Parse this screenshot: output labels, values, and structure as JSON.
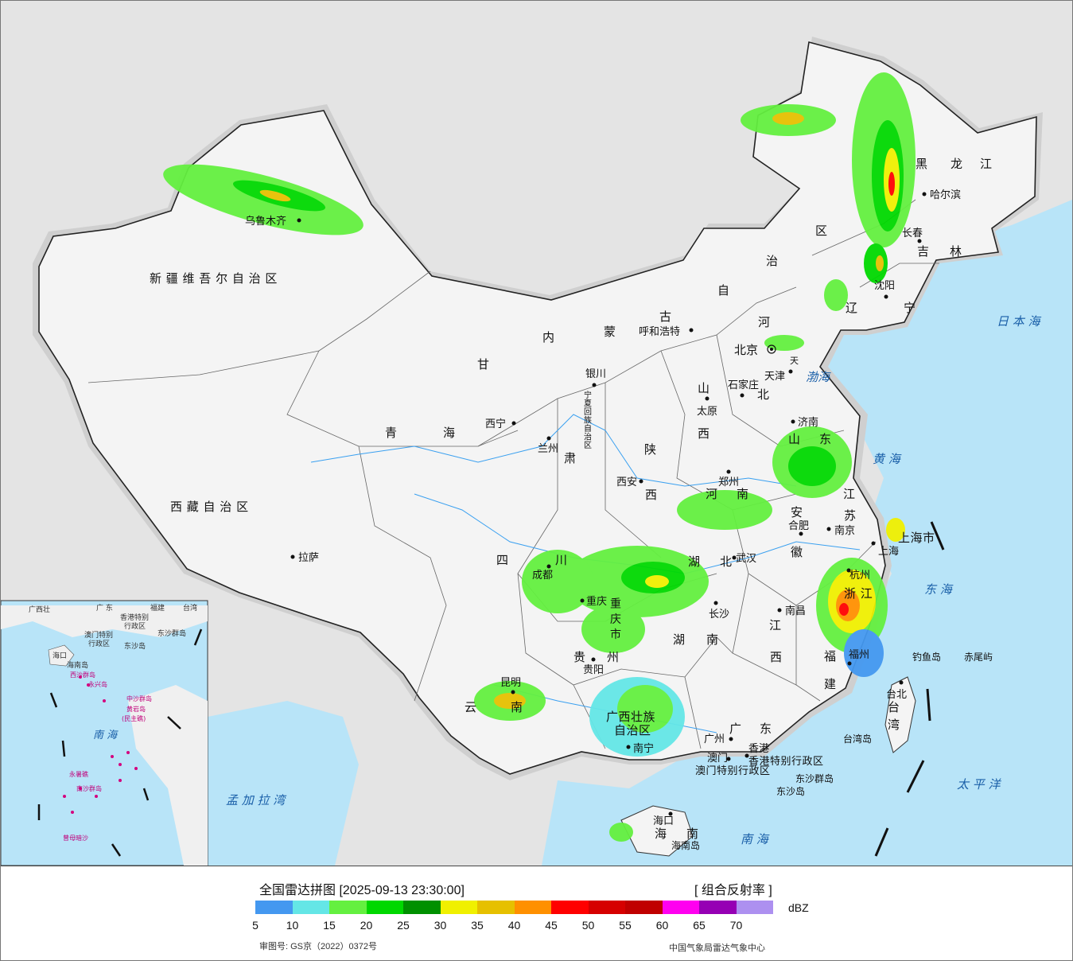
{
  "map": {
    "provinces": [
      "新疆维吾尔自治区",
      "西藏自治区",
      "青海",
      "甘肃",
      "内蒙古自治区",
      "黑龙江",
      "吉林",
      "辽宁",
      "河北",
      "山西",
      "陕西",
      "宁夏回族自治区",
      "四川",
      "重庆市",
      "云南",
      "贵州",
      "广西壮族自治区",
      "广东",
      "海南",
      "湖南",
      "湖北",
      "河南",
      "山东",
      "江苏",
      "安徽",
      "浙江",
      "江西",
      "福建",
      "台湾",
      "上海市",
      "天津",
      "北京",
      "香港特别行政区",
      "澳门特别行政区"
    ],
    "province_labels": {
      "xinjiang": "新 疆 维 吾 尔 自 治 区",
      "xizang": "西 藏 自 治 区",
      "qinghai_a": "青",
      "qinghai_b": "海",
      "gansu_a": "甘",
      "gansu_b": "肃",
      "nmg_a": "内",
      "nmg_b": "蒙",
      "nmg_c": "古",
      "nmg_d": "自",
      "nmg_e": "治",
      "nmg_f": "区",
      "hlj_a": "黑",
      "hlj_b": "龙",
      "hlj_c": "江",
      "jilin_a": "吉",
      "jilin_b": "林",
      "liaoning_a": "辽",
      "liaoning_b": "宁",
      "hebei_a": "河",
      "hebei_b": "北",
      "shanxi_a": "山",
      "shanxi_b": "西",
      "shaanxi_a": "陕",
      "shaanxi_b": "西",
      "ningxia": "宁夏回族自治区",
      "sichuan_a": "四",
      "sichuan_b": "川",
      "chongqing": "重 庆 市",
      "yunnan_a": "云",
      "yunnan_b": "南",
      "guizhou_a": "贵",
      "guizhou_b": "州",
      "guangxi_a": "广西壮族",
      "guangxi_b": "自治区",
      "guangdong_a": "广",
      "guangdong_b": "东",
      "hainan_a": "海",
      "hainan_b": "南",
      "hunan_a": "湖",
      "hunan_b": "南",
      "hubei_a": "湖",
      "hubei_b": "北",
      "henan_a": "河",
      "henan_b": "南",
      "shandong_a": "山",
      "shandong_b": "东",
      "jiangsu_a": "江",
      "jiangsu_b": "苏",
      "anhui_a": "安",
      "anhui_b": "徽",
      "zhejiang": "浙 江",
      "jiangxi_a": "江",
      "jiangxi_b": "西",
      "fujian_a": "福",
      "fujian_b": "建",
      "taiwan_a": "台",
      "taiwan_b": "湾",
      "shanghai": "上海市",
      "tianjin": "天",
      "hk": "香港特别行政区",
      "macau": "澳门特别行政区"
    },
    "cities": {
      "urumqi": "乌鲁木齐",
      "lhasa": "拉萨",
      "xining": "西宁",
      "lanzhou": "兰州",
      "yinchuan": "银川",
      "hohhot": "呼和浩特",
      "beijing": "北京",
      "tianjin": "天津",
      "shijiazhuang": "石家庄",
      "taiyuan": "太原",
      "xian": "西安",
      "zhengzhou": "郑州",
      "jinan": "济南",
      "nanjing": "南京",
      "hefei": "合肥",
      "shanghai": "上海",
      "hangzhou": "杭州",
      "wuhan": "武汉",
      "changsha": "长沙",
      "nanchang": "南昌",
      "fuzhou": "福州",
      "taipei": "台北",
      "chengdu": "成都",
      "chongqing": "重庆",
      "guiyang": "贵阳",
      "kunming": "昆明",
      "nanning": "南宁",
      "guangzhou": "广州",
      "hongkong": "香港",
      "macau": "澳门",
      "haikou": "海口",
      "shenyang": "沈阳",
      "changchun": "长春",
      "harbin": "哈尔滨"
    },
    "islands": {
      "diaoyu": "钓鱼岛",
      "chiwei": "赤尾屿",
      "taiwan_island": "台湾岛",
      "dongsha_qundao": "东沙群岛",
      "dongsha_dao": "东沙岛",
      "hainan_island": "海南岛"
    },
    "seas": {
      "bohai": "渤海",
      "huanghai": "黄 海",
      "donghai": "东 海",
      "nanhai": "南 海",
      "taipingyang": "太 平 洋",
      "ribenhai": "日 本 海",
      "mengjialawan": "孟 加 拉 湾"
    },
    "inset": {
      "guangdong": "广 东",
      "guangxi": "广西壮",
      "fujian": "福建",
      "taiwan": "台湾",
      "hk": "香港特别",
      "hk2": "行政区",
      "macau": "澳门特别",
      "macau2": "行政区",
      "dongsha": "东沙群岛",
      "dongsha2": "东沙岛",
      "haikou": "海口",
      "hainan": "海南岛",
      "xisha": "西沙群岛",
      "yongxing": "永兴岛",
      "zhongsha": "中沙群岛",
      "huangyan": "黄岩岛",
      "huangyan2": "(民主礁)",
      "nanhai": "南  海",
      "yongshu": "永暑礁",
      "nansha": "南沙群岛",
      "zengmu": "曾母暗沙"
    }
  },
  "legend": {
    "title": "全国雷达拼图 [2025-09-13 23:30:00]",
    "product": "[ 组合反射率 ]",
    "unit": "dBZ",
    "approval": "审图号: GS京（2022）0372号",
    "agency": "中国气象局雷达气象中心",
    "ticks": [
      "5",
      "10",
      "15",
      "20",
      "25",
      "30",
      "35",
      "40",
      "45",
      "50",
      "55",
      "60",
      "65",
      "70"
    ],
    "colors": [
      "#4498f0",
      "#64e6e6",
      "#64f040",
      "#00d800",
      "#009000",
      "#f0f000",
      "#e6c000",
      "#ff9000",
      "#ff0000",
      "#d60000",
      "#c00000",
      "#ff00f0",
      "#9600b4",
      "#ad90f0"
    ]
  }
}
